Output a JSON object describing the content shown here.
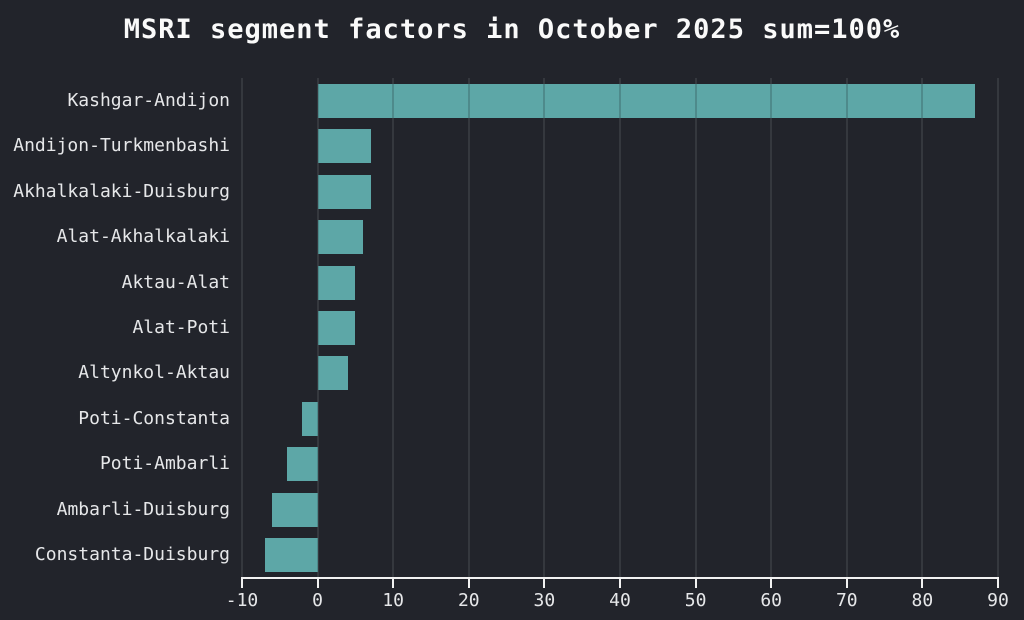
{
  "chart_data": {
    "type": "bar",
    "orientation": "horizontal",
    "title": "MSRI segment factors in October 2025 sum=100%",
    "categories": [
      "Kashgar-Andijon",
      "Andijon-Turkmenbashi",
      "Akhalkalaki-Duisburg",
      "Alat-Akhalkalaki",
      "Aktau-Alat",
      "Alat-Poti",
      "Altynkol-Aktau",
      "Poti-Constanta",
      "Poti-Ambarli",
      "Ambarli-Duisburg",
      "Constanta-Duisburg"
    ],
    "values": [
      87,
      7,
      7,
      6,
      5,
      5,
      4,
      -2,
      -4,
      -6,
      -7
    ],
    "xlabel": "",
    "ylabel": "",
    "xlim": [
      -10,
      90
    ],
    "xticks": [
      -10,
      0,
      10,
      20,
      30,
      40,
      50,
      60,
      70,
      80,
      90
    ],
    "grid": true,
    "legend": false,
    "colors": {
      "background": "#22242B",
      "bar": "#5DA7A7",
      "grid": "#3E4046",
      "axis": "#F2F2F2",
      "tick_label": "#E6E7E9",
      "category_label": "#E6E7E9",
      "title": "#FAFAFA"
    }
  }
}
